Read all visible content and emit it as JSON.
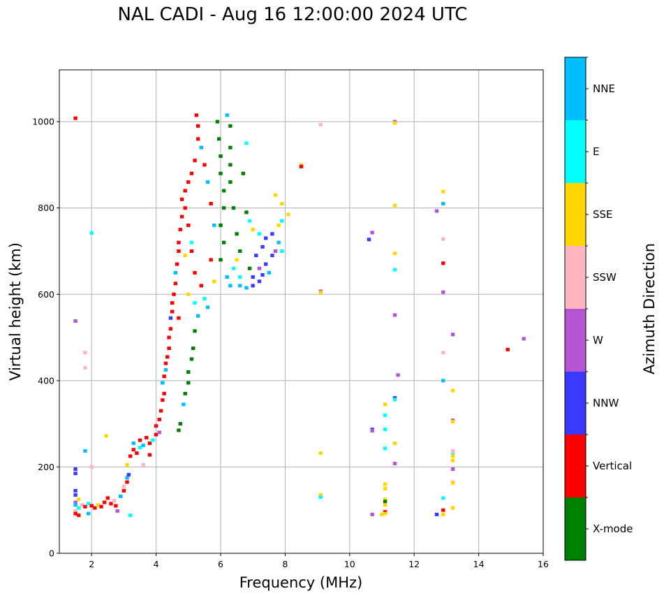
{
  "chart_data": {
    "type": "scatter",
    "title": "NAL CADI - Aug 16 12:00:00 2024 UTC",
    "xlabel": "Frequency (MHz)",
    "ylabel": "Virtual height (km)",
    "xlim": [
      1,
      16
    ],
    "ylim": [
      0,
      1120
    ],
    "xticks": [
      2,
      4,
      6,
      8,
      10,
      12,
      14,
      16
    ],
    "yticks": [
      0,
      200,
      400,
      600,
      800,
      1000
    ],
    "grid": true,
    "colorbar": {
      "label": "Azimuth Direction",
      "placement": "right",
      "categories": [
        {
          "name": "X-mode",
          "color": "#008000"
        },
        {
          "name": "Vertical",
          "color": "#ff0000"
        },
        {
          "name": "NNW",
          "color": "#3a3aff"
        },
        {
          "name": "W",
          "color": "#b455d4"
        },
        {
          "name": "SSW",
          "color": "#ffb6c1"
        },
        {
          "name": "SSE",
          "color": "#ffd700"
        },
        {
          "name": "E",
          "color": "#00ffff"
        },
        {
          "name": "NNE",
          "color": "#00bfff"
        }
      ]
    },
    "points_note": "Each point: [frequency MHz, virtual height km, direction]",
    "points": [
      [
        1.5,
        1008,
        "Vertical"
      ],
      [
        1.5,
        538,
        "W"
      ],
      [
        1.5,
        195,
        "NNW"
      ],
      [
        1.5,
        185,
        "NNW"
      ],
      [
        1.5,
        145,
        "NNW"
      ],
      [
        1.5,
        135,
        "NNW"
      ],
      [
        1.6,
        125,
        "SSE"
      ],
      [
        1.5,
        118,
        "W"
      ],
      [
        1.5,
        112,
        "NNE"
      ],
      [
        1.6,
        105,
        "E"
      ],
      [
        1.5,
        98,
        "SSW"
      ],
      [
        1.5,
        92,
        "Vertical"
      ],
      [
        1.6,
        88,
        "Vertical"
      ],
      [
        1.8,
        465,
        "SSW"
      ],
      [
        1.8,
        430,
        "SSW"
      ],
      [
        1.8,
        237,
        "NNE"
      ],
      [
        1.7,
        112,
        "SSW"
      ],
      [
        1.8,
        108,
        "Vertical"
      ],
      [
        1.9,
        115,
        "E"
      ],
      [
        2.0,
        110,
        "Vertical"
      ],
      [
        2.0,
        742,
        "E"
      ],
      [
        2.0,
        200,
        "SSW"
      ],
      [
        1.9,
        92,
        "NNE"
      ],
      [
        2.1,
        105,
        "Vertical"
      ],
      [
        2.2,
        112,
        "SSE"
      ],
      [
        2.3,
        108,
        "Vertical"
      ],
      [
        2.4,
        118,
        "Vertical"
      ],
      [
        2.45,
        272,
        "SSE"
      ],
      [
        2.5,
        128,
        "Vertical"
      ],
      [
        2.6,
        115,
        "Vertical"
      ],
      [
        2.7,
        122,
        "SSW"
      ],
      [
        2.75,
        110,
        "Vertical"
      ],
      [
        2.8,
        98,
        "W"
      ],
      [
        2.9,
        132,
        "NNE"
      ],
      [
        3.0,
        145,
        "Vertical"
      ],
      [
        3.0,
        155,
        "SSW"
      ],
      [
        3.1,
        165,
        "Vertical"
      ],
      [
        3.1,
        175,
        "NNE"
      ],
      [
        3.15,
        182,
        "NNW"
      ],
      [
        3.1,
        205,
        "SSE"
      ],
      [
        3.2,
        88,
        "E"
      ],
      [
        3.2,
        225,
        "Vertical"
      ],
      [
        3.3,
        240,
        "Vertical"
      ],
      [
        3.3,
        255,
        "NNE"
      ],
      [
        3.4,
        232,
        "Vertical"
      ],
      [
        3.5,
        245,
        "E"
      ],
      [
        3.5,
        262,
        "Vertical"
      ],
      [
        3.6,
        250,
        "NNE"
      ],
      [
        3.7,
        268,
        "Vertical"
      ],
      [
        3.8,
        255,
        "Vertical"
      ],
      [
        3.8,
        228,
        "Vertical"
      ],
      [
        3.6,
        205,
        "SSW"
      ],
      [
        3.9,
        262,
        "E"
      ],
      [
        4.0,
        275,
        "Vertical"
      ],
      [
        4.0,
        295,
        "Vertical"
      ],
      [
        4.1,
        310,
        "Vertical"
      ],
      [
        4.1,
        280,
        "W"
      ],
      [
        4.15,
        330,
        "Vertical"
      ],
      [
        4.2,
        355,
        "Vertical"
      ],
      [
        4.25,
        370,
        "Vertical"
      ],
      [
        4.2,
        395,
        "NNE"
      ],
      [
        4.25,
        410,
        "Vertical"
      ],
      [
        4.3,
        425,
        "NNE"
      ],
      [
        4.3,
        440,
        "Vertical"
      ],
      [
        4.35,
        455,
        "Vertical"
      ],
      [
        4.4,
        475,
        "Vertical"
      ],
      [
        4.4,
        500,
        "Vertical"
      ],
      [
        4.45,
        520,
        "Vertical"
      ],
      [
        4.45,
        545,
        "NNW"
      ],
      [
        4.5,
        560,
        "Vertical"
      ],
      [
        4.5,
        580,
        "Vertical"
      ],
      [
        4.55,
        600,
        "Vertical"
      ],
      [
        4.6,
        625,
        "Vertical"
      ],
      [
        4.6,
        650,
        "NNE"
      ],
      [
        4.65,
        670,
        "Vertical"
      ],
      [
        4.7,
        700,
        "Vertical"
      ],
      [
        4.7,
        720,
        "Vertical"
      ],
      [
        4.75,
        750,
        "Vertical"
      ],
      [
        4.8,
        780,
        "Vertical"
      ],
      [
        4.8,
        820,
        "Vertical"
      ],
      [
        4.9,
        840,
        "Vertical"
      ],
      [
        4.9,
        800,
        "Vertical"
      ],
      [
        5.0,
        860,
        "Vertical"
      ],
      [
        5.0,
        760,
        "Vertical"
      ],
      [
        5.1,
        880,
        "Vertical"
      ],
      [
        5.1,
        700,
        "Vertical"
      ],
      [
        5.2,
        910,
        "Vertical"
      ],
      [
        5.2,
        650,
        "Vertical"
      ],
      [
        5.3,
        960,
        "Vertical"
      ],
      [
        5.3,
        990,
        "Vertical"
      ],
      [
        5.25,
        1015,
        "Vertical"
      ],
      [
        5.4,
        940,
        "NNE"
      ],
      [
        5.4,
        620,
        "Vertical"
      ],
      [
        5.5,
        900,
        "Vertical"
      ],
      [
        5.5,
        590,
        "E"
      ],
      [
        5.6,
        860,
        "NNE"
      ],
      [
        5.6,
        570,
        "NNE"
      ],
      [
        5.7,
        810,
        "Vertical"
      ],
      [
        5.7,
        680,
        "Vertical"
      ],
      [
        5.8,
        760,
        "NNE"
      ],
      [
        5.8,
        630,
        "SSE"
      ],
      [
        4.9,
        690,
        "SSE"
      ],
      [
        5.0,
        600,
        "SSE"
      ],
      [
        5.1,
        720,
        "E"
      ],
      [
        5.2,
        580,
        "E"
      ],
      [
        4.7,
        545,
        "Vertical"
      ],
      [
        4.7,
        285,
        "X-mode"
      ],
      [
        4.75,
        300,
        "X-mode"
      ],
      [
        4.85,
        345,
        "NNE"
      ],
      [
        4.9,
        370,
        "X-mode"
      ],
      [
        5.0,
        395,
        "X-mode"
      ],
      [
        5.0,
        420,
        "X-mode"
      ],
      [
        5.1,
        450,
        "X-mode"
      ],
      [
        5.15,
        475,
        "X-mode"
      ],
      [
        5.2,
        515,
        "X-mode"
      ],
      [
        5.3,
        550,
        "NNE"
      ],
      [
        5.9,
        1000,
        "X-mode"
      ],
      [
        5.95,
        960,
        "X-mode"
      ],
      [
        6.0,
        920,
        "X-mode"
      ],
      [
        6.0,
        880,
        "X-mode"
      ],
      [
        6.1,
        840,
        "X-mode"
      ],
      [
        6.1,
        800,
        "X-mode"
      ],
      [
        6.0,
        760,
        "X-mode"
      ],
      [
        6.1,
        720,
        "X-mode"
      ],
      [
        6.0,
        680,
        "X-mode"
      ],
      [
        6.2,
        1015,
        "NNE"
      ],
      [
        6.3,
        990,
        "X-mode"
      ],
      [
        6.3,
        940,
        "X-mode"
      ],
      [
        6.3,
        900,
        "X-mode"
      ],
      [
        6.3,
        860,
        "X-mode"
      ],
      [
        6.4,
        800,
        "X-mode"
      ],
      [
        6.5,
        740,
        "X-mode"
      ],
      [
        6.6,
        700,
        "X-mode"
      ],
      [
        6.7,
        880,
        "X-mode"
      ],
      [
        6.8,
        950,
        "E"
      ],
      [
        6.8,
        790,
        "X-mode"
      ],
      [
        6.9,
        660,
        "X-mode"
      ],
      [
        6.2,
        640,
        "NNE"
      ],
      [
        6.3,
        620,
        "NNE"
      ],
      [
        6.4,
        660,
        "E"
      ],
      [
        6.5,
        680,
        "SSE"
      ],
      [
        6.6,
        640,
        "E"
      ],
      [
        6.6,
        620,
        "NNE"
      ],
      [
        6.8,
        615,
        "NNE"
      ],
      [
        7.0,
        620,
        "NNW"
      ],
      [
        7.0,
        640,
        "NNW"
      ],
      [
        7.2,
        630,
        "NNW"
      ],
      [
        7.2,
        660,
        "W"
      ],
      [
        7.3,
        645,
        "NNW"
      ],
      [
        7.4,
        670,
        "NNW"
      ],
      [
        7.5,
        650,
        "NNE"
      ],
      [
        7.6,
        690,
        "NNW"
      ],
      [
        7.1,
        690,
        "NNW"
      ],
      [
        7.3,
        710,
        "NNW"
      ],
      [
        7.4,
        730,
        "NNW"
      ],
      [
        7.6,
        740,
        "NNW"
      ],
      [
        7.8,
        720,
        "NNE"
      ],
      [
        7.8,
        760,
        "SSE"
      ],
      [
        7.9,
        770,
        "E"
      ],
      [
        7.7,
        700,
        "W"
      ],
      [
        7.0,
        750,
        "SSE"
      ],
      [
        7.2,
        740,
        "E"
      ],
      [
        6.9,
        770,
        "E"
      ],
      [
        7.9,
        700,
        "E"
      ],
      [
        7.7,
        830,
        "SSE"
      ],
      [
        7.9,
        810,
        "SSE"
      ],
      [
        8.1,
        785,
        "SSE"
      ],
      [
        8.5,
        900,
        "SSE"
      ],
      [
        8.5,
        896,
        "Vertical"
      ],
      [
        9.1,
        993,
        "SSW"
      ],
      [
        9.1,
        607,
        "W"
      ],
      [
        9.1,
        604,
        "SSE"
      ],
      [
        9.1,
        232,
        "SSE"
      ],
      [
        9.1,
        135,
        "SSE"
      ],
      [
        9.1,
        130,
        "E"
      ],
      [
        10.7,
        743,
        "W"
      ],
      [
        10.6,
        727,
        "NNW"
      ],
      [
        11.4,
        1000,
        "W"
      ],
      [
        11.4,
        997,
        "SSE"
      ],
      [
        11.4,
        806,
        "SSE"
      ],
      [
        11.4,
        695,
        "SSE"
      ],
      [
        11.4,
        657,
        "E"
      ],
      [
        11.4,
        552,
        "W"
      ],
      [
        11.5,
        413,
        "W"
      ],
      [
        11.4,
        360,
        "NNW"
      ],
      [
        11.4,
        356,
        "E"
      ],
      [
        11.1,
        345,
        "SSE"
      ],
      [
        11.1,
        320,
        "E"
      ],
      [
        10.7,
        287,
        "NNW"
      ],
      [
        10.7,
        284,
        "W"
      ],
      [
        11.1,
        287,
        "E"
      ],
      [
        11.4,
        255,
        "SSE"
      ],
      [
        11.1,
        243,
        "E"
      ],
      [
        11.4,
        208,
        "W"
      ],
      [
        11.1,
        160,
        "SSE"
      ],
      [
        11.1,
        150,
        "SSE"
      ],
      [
        11.1,
        125,
        "SSE"
      ],
      [
        11.1,
        120,
        "X-mode"
      ],
      [
        11.1,
        112,
        "SSE"
      ],
      [
        11.1,
        96,
        "Vertical"
      ],
      [
        11.1,
        92,
        "SSE"
      ],
      [
        11.0,
        90,
        "SSE"
      ],
      [
        10.7,
        90,
        "W"
      ],
      [
        12.7,
        793,
        "W"
      ],
      [
        12.9,
        838,
        "SSE"
      ],
      [
        12.9,
        810,
        "NNE"
      ],
      [
        12.9,
        728,
        "SSW"
      ],
      [
        12.9,
        672,
        "Vertical"
      ],
      [
        12.9,
        605,
        "W"
      ],
      [
        13.2,
        507,
        "W"
      ],
      [
        12.9,
        465,
        "SSW"
      ],
      [
        12.9,
        400,
        "NNE"
      ],
      [
        13.2,
        377,
        "SSE"
      ],
      [
        13.2,
        308,
        "W"
      ],
      [
        13.2,
        305,
        "SSE"
      ],
      [
        13.2,
        237,
        "SSW"
      ],
      [
        13.2,
        228,
        "E"
      ],
      [
        13.2,
        225,
        "SSE"
      ],
      [
        13.2,
        215,
        "SSE"
      ],
      [
        13.2,
        195,
        "W"
      ],
      [
        13.2,
        165,
        "SSW"
      ],
      [
        13.2,
        163,
        "SSE"
      ],
      [
        12.9,
        128,
        "E"
      ],
      [
        13.2,
        105,
        "SSE"
      ],
      [
        12.9,
        100,
        "Vertical"
      ],
      [
        12.7,
        90,
        "NNW"
      ],
      [
        12.9,
        90,
        "SSE"
      ],
      [
        14.9,
        472,
        "Vertical"
      ],
      [
        15.4,
        497,
        "W"
      ]
    ]
  }
}
